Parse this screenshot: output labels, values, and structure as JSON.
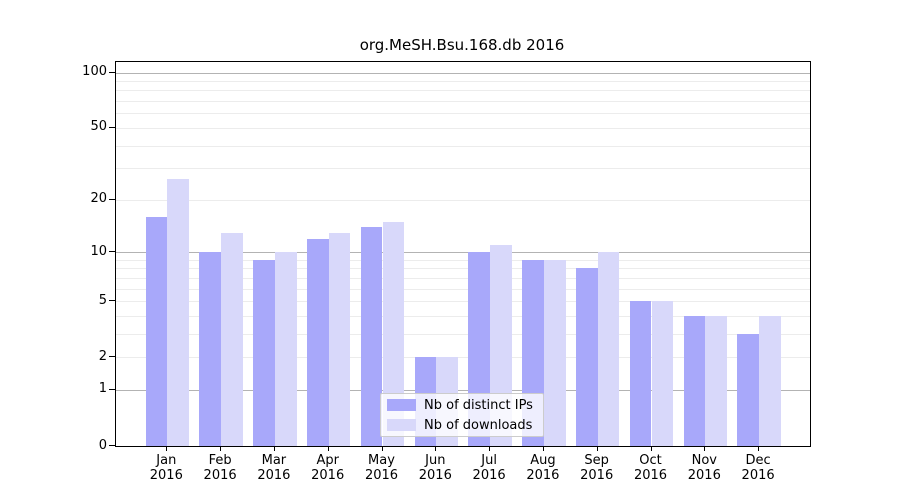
{
  "chart_data": {
    "type": "bar",
    "title": "org.MeSH.Bsu.168.db 2016",
    "categories": [
      "Jan 2016",
      "Feb 2016",
      "Mar 2016",
      "Apr 2016",
      "May 2016",
      "Jun 2016",
      "Jul 2016",
      "Aug 2016",
      "Sep 2016",
      "Oct 2016",
      "Nov 2016",
      "Dec 2016"
    ],
    "series": [
      {
        "name": "Nb of distinct IPs",
        "color": "#a8a8fa",
        "values": [
          16,
          10,
          9,
          12,
          14,
          2,
          10,
          9,
          8,
          5,
          4,
          3
        ]
      },
      {
        "name": "Nb of downloads",
        "color": "#d8d8fa",
        "values": [
          26,
          13,
          10,
          13,
          15,
          2,
          11,
          9,
          10,
          5,
          4,
          4
        ]
      }
    ],
    "xlabel": "",
    "ylabel": "",
    "y_scale": "log10(1+x)",
    "y_ticks": [
      100,
      50,
      20,
      10,
      5,
      2,
      1,
      0
    ],
    "y_gridlines_major": [
      1,
      10,
      100
    ],
    "y_gridlines_minor": [
      2,
      3,
      4,
      5,
      6,
      7,
      8,
      9,
      20,
      30,
      40,
      50,
      60,
      70,
      80,
      90
    ],
    "ylim": [
      0,
      113
    ],
    "grid": true,
    "legend_position": "bottom-center"
  },
  "colors": {
    "grid_major": "#b3b3b3",
    "grid_minor": "#ececec",
    "spine": "#000000",
    "legend_border": "#cccccc",
    "bar_ips": "#a8a8fa",
    "bar_downloads": "#d8d8fa"
  }
}
